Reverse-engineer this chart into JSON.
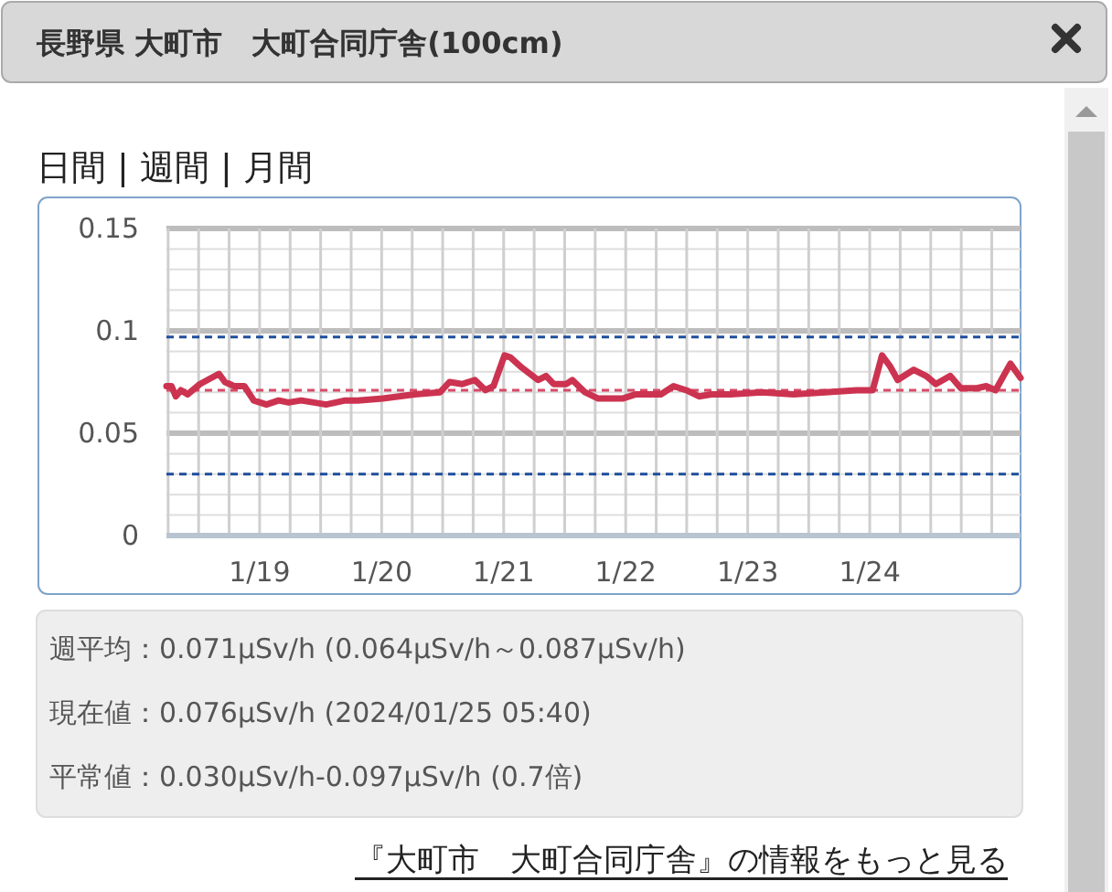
{
  "chart_data": {
    "type": "line",
    "title": "長野県 大町市　大町合同庁舎(100cm)",
    "x": [
      "2024-01-18T05:40",
      "2024-01-18T06:40",
      "2024-01-18T07:30",
      "2024-01-18T08:30",
      "2024-01-18T09:50",
      "2024-01-18T12:15",
      "2024-01-18T16:00",
      "2024-01-18T17:10",
      "2024-01-18T19:00",
      "2024-01-18T21:00",
      "2024-01-18T22:50",
      "2024-01-19T01:20",
      "2024-01-19T03:45",
      "2024-01-19T05:40",
      "2024-01-19T08:10",
      "2024-01-19T10:40",
      "2024-01-19T13:05",
      "2024-01-19T16:50",
      "2024-01-19T19:20",
      "2024-01-20T00:15",
      "2024-01-20T06:30",
      "2024-01-20T11:30",
      "2024-01-20T13:20",
      "2024-01-20T15:50",
      "2024-01-20T18:20",
      "2024-01-20T20:25",
      "2024-01-20T22:00",
      "2024-01-21T00:10",
      "2024-01-21T01:20",
      "2024-01-21T03:35",
      "2024-01-21T06:45",
      "2024-01-21T08:20",
      "2024-01-21T09:50",
      "2024-01-21T12:20",
      "2024-01-21T13:30",
      "2024-01-21T16:00",
      "2024-01-21T18:30",
      "2024-01-21T23:30",
      "2024-01-22T02:00",
      "2024-01-22T06:55",
      "2024-01-22T09:25",
      "2024-01-22T11:55",
      "2024-01-22T14:25",
      "2024-01-22T16:50",
      "2024-01-22T20:35",
      "2024-01-23T02:50",
      "2024-01-23T09:00",
      "2024-01-23T15:15",
      "2024-01-23T21:25",
      "2024-01-24T00:35",
      "2024-01-24T02:25",
      "2024-01-24T03:55",
      "2024-01-24T05:30",
      "2024-01-24T08:40",
      "2024-01-24T11:05",
      "2024-01-24T13:00",
      "2024-01-24T15:50",
      "2024-01-24T17:55",
      "2024-01-24T21:05",
      "2024-01-24T22:55",
      "2024-01-25T00:45",
      "2024-01-25T03:40",
      "2024-01-25T05:40"
    ],
    "series": [
      {
        "color": "#cc3350",
        "values": [
          0.073,
          0.073,
          0.068,
          0.071,
          0.069,
          0.074,
          0.079,
          0.075,
          0.073,
          0.073,
          0.066,
          0.064,
          0.066,
          0.065,
          0.066,
          0.065,
          0.064,
          0.066,
          0.066,
          0.067,
          0.069,
          0.07,
          0.075,
          0.074,
          0.076,
          0.071,
          0.073,
          0.088,
          0.087,
          0.082,
          0.076,
          0.078,
          0.074,
          0.074,
          0.076,
          0.07,
          0.067,
          0.067,
          0.069,
          0.069,
          0.073,
          0.071,
          0.068,
          0.069,
          0.069,
          0.07,
          0.069,
          0.07,
          0.071,
          0.071,
          0.088,
          0.083,
          0.076,
          0.081,
          0.078,
          0.074,
          0.078,
          0.072,
          0.072,
          0.073,
          0.071,
          0.084,
          0.077
        ]
      }
    ],
    "xlim": [
      "2024-01-18T05:40",
      "2024-01-25T05:40"
    ],
    "xticks": [
      {
        "value": "2024-01-18T06:00",
        "label": null
      },
      {
        "value": "2024-01-18T12:00",
        "label": null
      },
      {
        "value": "2024-01-18T18:00",
        "label": null
      },
      {
        "value": "2024-01-19T00:00",
        "label": "1/19"
      },
      {
        "value": "2024-01-19T06:00",
        "label": null
      },
      {
        "value": "2024-01-19T12:00",
        "label": null
      },
      {
        "value": "2024-01-19T18:00",
        "label": null
      },
      {
        "value": "2024-01-20T00:00",
        "label": "1/20"
      },
      {
        "value": "2024-01-20T06:00",
        "label": null
      },
      {
        "value": "2024-01-20T12:00",
        "label": null
      },
      {
        "value": "2024-01-20T18:00",
        "label": null
      },
      {
        "value": "2024-01-21T00:00",
        "label": "1/21"
      },
      {
        "value": "2024-01-21T06:00",
        "label": null
      },
      {
        "value": "2024-01-21T12:00",
        "label": null
      },
      {
        "value": "2024-01-21T18:00",
        "label": null
      },
      {
        "value": "2024-01-22T00:00",
        "label": "1/22"
      },
      {
        "value": "2024-01-22T06:00",
        "label": null
      },
      {
        "value": "2024-01-22T12:00",
        "label": null
      },
      {
        "value": "2024-01-22T18:00",
        "label": null
      },
      {
        "value": "2024-01-23T00:00",
        "label": "1/23"
      },
      {
        "value": "2024-01-23T06:00",
        "label": null
      },
      {
        "value": "2024-01-23T12:00",
        "label": null
      },
      {
        "value": "2024-01-23T18:00",
        "label": null
      },
      {
        "value": "2024-01-24T00:00",
        "label": "1/24"
      },
      {
        "value": "2024-01-24T06:00",
        "label": null
      },
      {
        "value": "2024-01-24T12:00",
        "label": null
      },
      {
        "value": "2024-01-24T18:00",
        "label": null
      },
      {
        "value": "2024-01-25T00:00",
        "label": null
      }
    ],
    "ylim": [
      0,
      0.15
    ],
    "yticks": [
      0,
      {
        "value": 0.01,
        "label": null
      },
      {
        "value": 0.02,
        "label": null
      },
      {
        "value": 0.03,
        "label": null
      },
      {
        "value": 0.04,
        "label": null
      },
      0.05,
      {
        "value": 0.06,
        "label": null
      },
      {
        "value": 0.07,
        "label": null
      },
      {
        "value": 0.08,
        "label": null
      },
      {
        "value": 0.09,
        "label": null
      },
      0.1,
      {
        "value": 0.11,
        "label": null
      },
      {
        "value": 0.12,
        "label": null
      },
      {
        "value": 0.13,
        "label": null
      },
      {
        "value": 0.14,
        "label": null
      },
      0.15
    ],
    "grid": true,
    "marker": "none",
    "line_style": "solid",
    "ref_lines": [
      {
        "axis": "y",
        "value": 0.097,
        "color": "#1f4e9c",
        "line_style": "dashed"
      },
      {
        "axis": "y",
        "value": 0.03,
        "color": "#1f4e9c",
        "line_style": "dashed"
      },
      {
        "axis": "y",
        "value": 0.071,
        "color": "#d84a66",
        "line_style": "dashed"
      }
    ],
    "annotations": [
      "日間 | 週間 | 月間",
      "週平均：0.071μSv/h (0.064μSv/h～0.087μSv/h)",
      "現在値：0.076μSv/h (2024/01/25 05:40)",
      "平常値：0.030μSv/h-0.097μSv/h (0.7倍)",
      "『大町市　大町合同庁舎』の情報をもっと見る"
    ]
  }
}
